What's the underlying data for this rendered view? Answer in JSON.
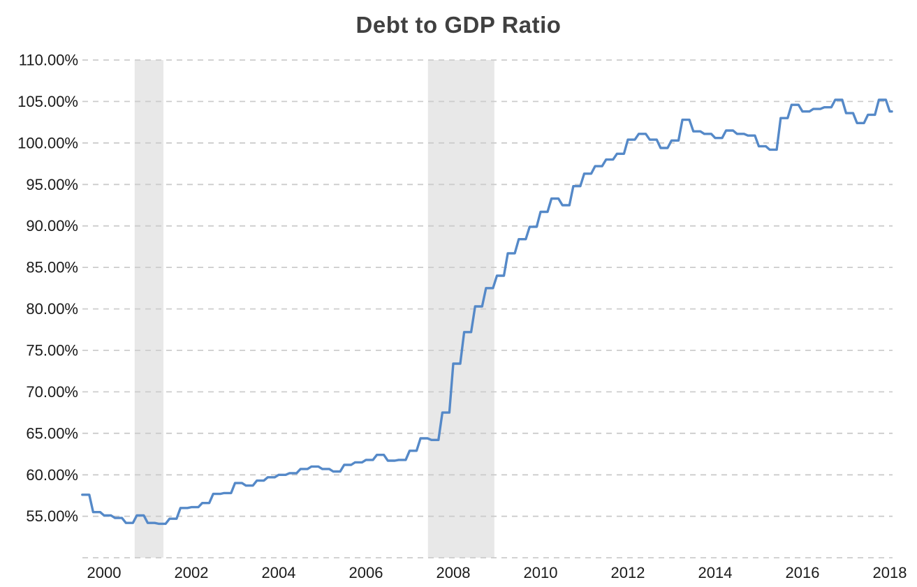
{
  "chart_data": {
    "type": "line",
    "title": "Debt to GDP Ratio",
    "xlabel": "",
    "ylabel": "",
    "grid": "horizontal-dashed",
    "legend": "none",
    "ylim": [
      50,
      110
    ],
    "xlim": [
      1999.5,
      2018.1
    ],
    "y_ticks": [
      110,
      105,
      100,
      95,
      90,
      85,
      80,
      75,
      70,
      65,
      60,
      55
    ],
    "y_tick_labels": [
      "110.00%",
      "105.00%",
      "100.00%",
      "95.00%",
      "90.00%",
      "85.00%",
      "80.00%",
      "75.00%",
      "70.00%",
      "65.00%",
      "60.00%",
      "55.00%"
    ],
    "x_tick_years": [
      2000,
      2002,
      2004,
      2006,
      2008,
      2010,
      2012,
      2014,
      2016,
      2018
    ],
    "x_tick_labels": [
      "2000",
      "2002",
      "2004",
      "2006",
      "2008",
      "2010",
      "2012",
      "2014",
      "2016",
      "2018"
    ],
    "recession_bands": [
      {
        "from": 2000.7,
        "to": 2001.36
      },
      {
        "from": 2007.42,
        "to": 2008.94
      }
    ],
    "series": [
      {
        "name": "Debt to GDP Ratio",
        "unit": "%",
        "x_start": 1999.5,
        "x_step_years": 0.25,
        "values": [
          57.6,
          55.5,
          55.1,
          54.8,
          54.2,
          55.1,
          54.2,
          54.1,
          54.7,
          56.0,
          56.1,
          56.6,
          57.7,
          57.8,
          59.0,
          58.7,
          59.3,
          59.7,
          60.0,
          60.2,
          60.7,
          61.0,
          60.7,
          60.4,
          61.2,
          61.5,
          61.8,
          62.4,
          61.7,
          61.8,
          62.9,
          64.4,
          64.2,
          67.5,
          73.4,
          77.2,
          80.3,
          82.5,
          84.0,
          86.7,
          88.4,
          89.9,
          91.7,
          93.3,
          92.5,
          94.8,
          96.3,
          97.2,
          98.0,
          98.7,
          100.4,
          101.1,
          100.4,
          99.4,
          100.3,
          102.8,
          101.4,
          101.1,
          100.6,
          101.5,
          101.1,
          100.9,
          99.6,
          99.2,
          103.0,
          104.6,
          103.8,
          104.1,
          104.3,
          105.2,
          103.6,
          102.4,
          103.4,
          105.2,
          103.8
        ]
      }
    ],
    "colors": {
      "line": "#5589c8",
      "recession_band": "#e8e8e8",
      "gridline": "#cccccc",
      "axis_label": "#1a1a1a",
      "title": "#404040",
      "background": "#ffffff"
    }
  }
}
